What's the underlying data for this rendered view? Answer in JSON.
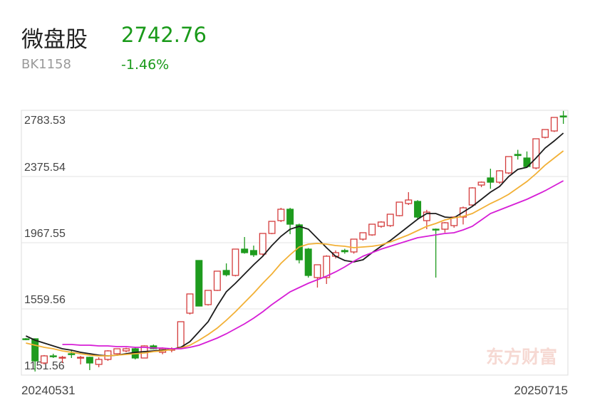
{
  "header": {
    "title": "微盘股",
    "price": "2742.76",
    "code": "BK1158",
    "change": "-1.46%"
  },
  "chart_data": {
    "type": "candlestick",
    "categories": [
      "20240531",
      null,
      null,
      null,
      null,
      null,
      null,
      null,
      null,
      null,
      null,
      null,
      null,
      null,
      null,
      null,
      null,
      null,
      null,
      null,
      null,
      null,
      null,
      null,
      null,
      null,
      null,
      null,
      null,
      null,
      null,
      null,
      null,
      null,
      null,
      null,
      null,
      null,
      null,
      null,
      null,
      null,
      null,
      null,
      null,
      null,
      null,
      null,
      null,
      null,
      null,
      null,
      null,
      null,
      null,
      null,
      null,
      null,
      null,
      "20250715"
    ],
    "open": [
      1375.3,
      1375.3,
      1226.2,
      1270,
      1256.9,
      1283.2,
      1256.9,
      1261.3,
      1217.4,
      1248.1,
      1283.2,
      1300.8,
      1313.9,
      1256.9,
      1331.5,
      1292,
      1305,
      1322.7,
      1533.3,
      1857.9,
      1585.9,
      1673.7,
      1796.5,
      1765.8,
      1928.1,
      1919.3,
      1897.4,
      2024.6,
      2103.6,
      2173.8,
      2077.3,
      1928.1,
      1752.6,
      1752.6,
      1884.2,
      1919.3,
      1910.6,
      1989.5,
      2015.8,
      2068.5,
      2072.9,
      2134.3,
      2208.9,
      2222,
      2103.6,
      2050.9,
      2050.9,
      2072.9,
      2125.5,
      2200.1,
      2322.9,
      2366.8,
      2340.5,
      2397.5,
      2511.6,
      2489.6,
      2428.2,
      2616.9,
      2656.3,
      2748.5
    ],
    "high": [
      1380,
      1378,
      1275,
      1283.2,
      1270,
      1300.8,
      1270,
      1265,
      1261.3,
      1305,
      1315,
      1320,
      1322.7,
      1335,
      1340,
      1322.7,
      1322.7,
      1480.6,
      1651.7,
      1860,
      1673.7,
      1792.1,
      1840,
      1928.1,
      2002.7,
      1950,
      2024.6,
      2099.2,
      2182.5,
      2182.5,
      2085,
      1935,
      1831.6,
      1890,
      1920,
      1930,
      1989.5,
      2029,
      2081.6,
      2100,
      2143.1,
      2217.6,
      2279.1,
      2230,
      2170,
      2055,
      2095,
      2130,
      2190,
      2310,
      2345,
      2423.8,
      2415,
      2498.4,
      2540,
      2530,
      2608.1,
      2665.1,
      2739.7,
      2780
    ],
    "low": [
      1366.6,
      1173.5,
      1217.4,
      1256.9,
      1226.2,
      1256.9,
      1217.4,
      1182.3,
      1200,
      1239.3,
      1278.8,
      1292,
      1248.1,
      1256.9,
      1310,
      1280,
      1292,
      1320,
      1525,
      1577.1,
      1580,
      1670,
      1760,
      1760,
      1900,
      1880,
      1890,
      2020,
      2095,
      2020,
      1840,
      1752.6,
      1691.2,
      1713.1,
      1870,
      1900,
      1900,
      1980,
      2010,
      2060,
      2065,
      2130,
      2200,
      2110,
      2050.9,
      1752.6,
      2030,
      2060,
      2080,
      2195,
      2310,
      2300,
      2330,
      2390,
      2480,
      2430,
      2420,
      2610,
      2650,
      2700
    ],
    "close": [
      1370,
      1239.3,
      1270,
      1265,
      1261.3,
      1278.8,
      1261.3,
      1226.2,
      1248.1,
      1300.8,
      1313.9,
      1313.9,
      1256.9,
      1331.5,
      1313.9,
      1313.9,
      1313.9,
      1480.6,
      1651.7,
      1577.1,
      1673.7,
      1792.1,
      1770.2,
      1928.1,
      1906.2,
      1893,
      2024.6,
      2099.2,
      2173.8,
      2081.6,
      1862.3,
      1765.8,
      1831.6,
      1884.2,
      1906.2,
      1912,
      1989.5,
      2029,
      2081.6,
      2094.8,
      2143.1,
      2217.6,
      2230.8,
      2125.5,
      2156.2,
      2046,
      2090.4,
      2125.5,
      2182.5,
      2305.4,
      2340.5,
      2340.5,
      2410.7,
      2498.4,
      2505,
      2437,
      2608.1,
      2665.1,
      2739.7,
      2742.76
    ],
    "up_color": "#d43c3c",
    "down_color": "#1e9b1e",
    "series": [
      {
        "color": "#1c1c1c",
        "values": [
          1392.9,
          1366.6,
          1349,
          1331.5,
          1313.9,
          1305.1,
          1292,
          1283.2,
          1274.4,
          1270,
          1274.4,
          1283.2,
          1292,
          1296.4,
          1300.8,
          1305.1,
          1309.5,
          1322.7,
          1357.8,
          1419.2,
          1480.6,
          1577.1,
          1664.9,
          1717.5,
          1774.6,
          1831.6,
          1884.2,
          1950,
          2007.1,
          2050.9,
          2068.5,
          2050.9,
          1993.9,
          1936.9,
          1884.2,
          1857.9,
          1849.1,
          1862.3,
          1906.2,
          1945.6,
          1980.7,
          2024.6,
          2068.5,
          2112.4,
          2147.5,
          2147.5,
          2125.5,
          2121.1,
          2156.2,
          2191.3,
          2235.2,
          2279.1,
          2314.2,
          2375.6,
          2419.4,
          2432.6,
          2489.6,
          2551.1,
          2594.9,
          2643.2
        ]
      },
      {
        "color": "#f2b035",
        "values": [
          1349,
          1335.9,
          1322.7,
          1313.9,
          1300.8,
          1292,
          1283.2,
          1274.4,
          1270,
          1270,
          1274.4,
          1278.8,
          1283.2,
          1287.6,
          1296.4,
          1300.8,
          1309.5,
          1318.3,
          1335.9,
          1366.6,
          1401.7,
          1441.1,
          1489.4,
          1542,
          1599.1,
          1656.1,
          1717.5,
          1774.6,
          1840.4,
          1893,
          1941.3,
          1958.8,
          1963.2,
          1958.8,
          1950,
          1945.6,
          1936.9,
          1941.3,
          1945.6,
          1954.4,
          1972,
          1993.9,
          2015.8,
          2042.2,
          2068.5,
          2086,
          2108,
          2121.1,
          2129.9,
          2147.5,
          2178.2,
          2208.9,
          2235.2,
          2265.9,
          2305.4,
          2344.9,
          2393.1,
          2445.8,
          2489.6,
          2533.5
        ]
      },
      {
        "color": "#d61ed6",
        "values": [
          null,
          null,
          null,
          null,
          1340.2,
          1340.2,
          1335.9,
          1335.9,
          1331.5,
          1331.5,
          1327.1,
          1327.1,
          1322.7,
          1322.7,
          1318.3,
          1318.3,
          1313.9,
          1313.9,
          1322.7,
          1335.9,
          1357.8,
          1379.7,
          1406.1,
          1436.8,
          1467.5,
          1502.6,
          1542,
          1585.9,
          1625.4,
          1664.9,
          1691.2,
          1717.5,
          1739.5,
          1761.4,
          1787.7,
          1818.4,
          1853.5,
          1884.2,
          1906.2,
          1928.1,
          1945.6,
          1963.2,
          1980.7,
          1998.3,
          2007.1,
          2015.8,
          2024.6,
          2029,
          2046.5,
          2068.5,
          2108,
          2147.5,
          2169.4,
          2191.3,
          2213.3,
          2235.2,
          2261.5,
          2287.8,
          2318.5,
          2349.2
        ]
      }
    ],
    "ylim": [
      1151.56,
      2783.53
    ],
    "yticks": [
      1151.56,
      1559.56,
      1967.55,
      2375.54,
      2783.53
    ],
    "grid": true,
    "watermark": "东方财富"
  }
}
